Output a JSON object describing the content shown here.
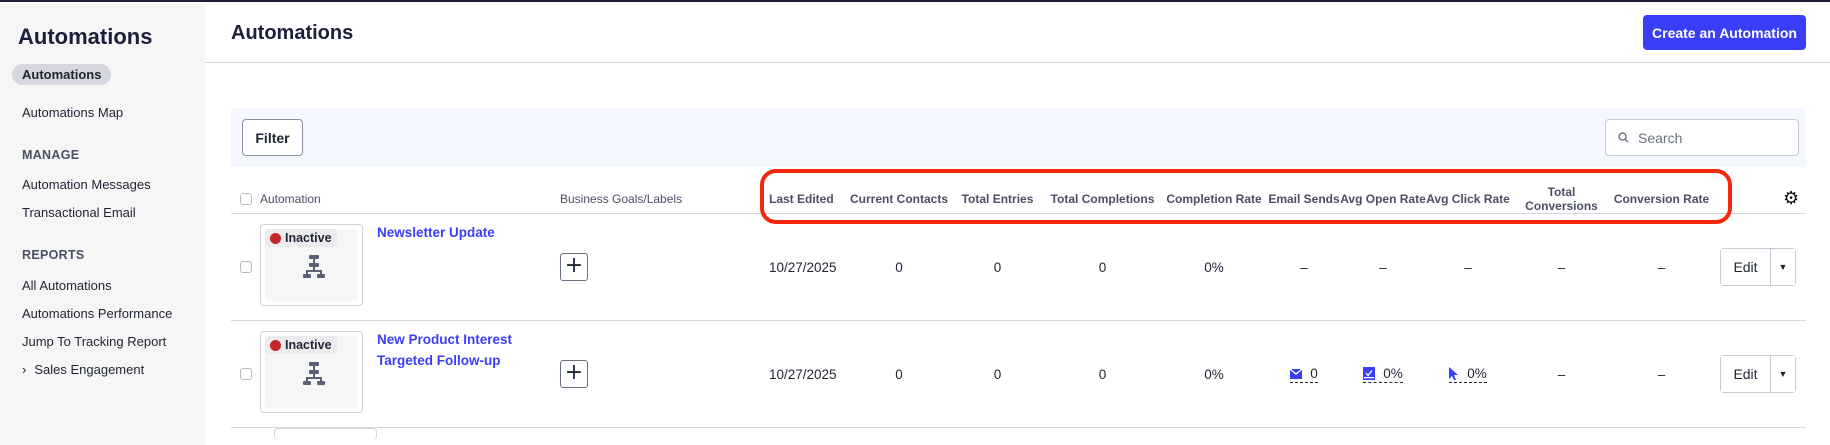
{
  "sidebar": {
    "title": "Automations",
    "items": [
      {
        "label": "Automations",
        "active": true
      },
      {
        "label": "Automations Map"
      }
    ],
    "manage_heading": "MANAGE",
    "manage": [
      {
        "label": "Automation Messages"
      },
      {
        "label": "Transactional Email"
      }
    ],
    "reports_heading": "REPORTS",
    "reports": [
      {
        "label": "All Automations"
      },
      {
        "label": "Automations Performance"
      },
      {
        "label": "Jump To Tracking Report"
      },
      {
        "label": "Sales Engagement"
      }
    ]
  },
  "header": {
    "title": "Automations",
    "create_label": "Create an Automation"
  },
  "toolbar": {
    "filter_label": "Filter",
    "search_placeholder": "Search"
  },
  "table": {
    "columns": [
      "Automation",
      "Business Goals/Labels",
      "Last Edited",
      "Current Contacts",
      "Total Entries",
      "Total Completions",
      "Completion Rate",
      "Email Sends",
      "Avg Open Rate",
      "Avg Click Rate",
      "Total Conversions",
      "Conversion Rate"
    ],
    "rows": [
      {
        "status": "Inactive",
        "name": "Newsletter Update",
        "last_edited": "10/27/2025",
        "current_contacts": "0",
        "total_entries": "0",
        "total_completions": "0",
        "completion_rate": "0%",
        "email_sends": "–",
        "avg_open_rate": "–",
        "avg_click_rate": "–",
        "total_conversions": "–",
        "conversion_rate": "–",
        "edit_label": "Edit"
      },
      {
        "status": "Inactive",
        "name": "New Product Interest Targeted Follow-up",
        "last_edited": "10/27/2025",
        "current_contacts": "0",
        "total_entries": "0",
        "total_completions": "0",
        "completion_rate": "0%",
        "email_sends": "0",
        "avg_open_rate": "0%",
        "avg_click_rate": "0%",
        "total_conversions": "–",
        "conversion_rate": "–",
        "edit_label": "Edit"
      }
    ]
  },
  "colors": {
    "accent": "#3a3ef6",
    "inactive": "#c4262a",
    "annotation": "#f2270c"
  }
}
